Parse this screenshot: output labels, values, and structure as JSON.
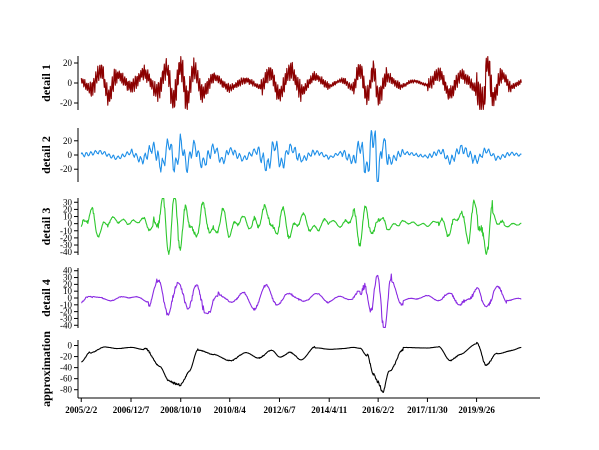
{
  "chart_data": {
    "type": "line",
    "x_tick_labels": [
      "2005/2/2",
      "2006/12/7",
      "2008/10/10",
      "2010/8/4",
      "2012/6/7",
      "2014/4/11",
      "2016/2/2",
      "2017/11/30",
      "2019/9/26"
    ],
    "x_ticks": [
      "2005-02-02",
      "2006-12-07",
      "2008-10-10",
      "2010-08-04",
      "2012-06-07",
      "2014-04-11",
      "2016-02-02",
      "2017-11-30",
      "2019-09-26"
    ],
    "x_range": [
      "2004-12-20",
      "2022-01-31"
    ],
    "data_range": [
      "2005-02-02",
      "2021-05-28"
    ],
    "panels": [
      {
        "ylabel": "detail 1",
        "color": "#8b0000",
        "ylim": [
          -27,
          27
        ],
        "yticks": [
          -20,
          0,
          20
        ],
        "points": [
          [
            "2005-02-02",
            2
          ],
          [
            "2005-06-01",
            -6
          ],
          [
            "2005-11-01",
            12
          ],
          [
            "2006-02-01",
            -14
          ],
          [
            "2006-06-01",
            8
          ],
          [
            "2006-12-01",
            -3
          ],
          [
            "2007-06-01",
            10
          ],
          [
            "2007-12-01",
            -9
          ],
          [
            "2008-04-01",
            16
          ],
          [
            "2008-07-01",
            -17
          ],
          [
            "2008-10-10",
            18
          ],
          [
            "2009-01-01",
            -16
          ],
          [
            "2009-04-01",
            14
          ],
          [
            "2009-08-01",
            -10
          ],
          [
            "2010-01-01",
            6
          ],
          [
            "2010-08-04",
            -5
          ],
          [
            "2011-03-01",
            3
          ],
          [
            "2011-10-01",
            -4
          ],
          [
            "2012-02-01",
            11
          ],
          [
            "2012-06-07",
            -12
          ],
          [
            "2012-11-01",
            13
          ],
          [
            "2013-04-01",
            -8
          ],
          [
            "2013-10-01",
            6
          ],
          [
            "2014-04-11",
            -3
          ],
          [
            "2014-10-01",
            3
          ],
          [
            "2015-03-01",
            -5
          ],
          [
            "2015-06-01",
            14
          ],
          [
            "2015-09-01",
            -15
          ],
          [
            "2015-12-01",
            13
          ],
          [
            "2016-02-02",
            -14
          ],
          [
            "2016-06-01",
            6
          ],
          [
            "2016-12-01",
            -3
          ],
          [
            "2017-06-01",
            2
          ],
          [
            "2017-11-30",
            -2
          ],
          [
            "2018-05-01",
            9
          ],
          [
            "2018-10-01",
            -10
          ],
          [
            "2019-03-01",
            8
          ],
          [
            "2019-09-26",
            -6
          ],
          [
            "2020-01-01",
            -23
          ],
          [
            "2020-02-15",
            24
          ],
          [
            "2020-05-01",
            -14
          ],
          [
            "2020-09-01",
            8
          ],
          [
            "2021-01-01",
            -4
          ],
          [
            "2021-05-28",
            1
          ]
        ]
      },
      {
        "ylabel": "detail 2",
        "color": "#1e8fe8",
        "ylim": [
          -38,
          38
        ],
        "yticks": [
          -20,
          0,
          20
        ],
        "points": [
          [
            "2005-02-02",
            0
          ],
          [
            "2005-10-01",
            4
          ],
          [
            "2006-06-01",
            -4
          ],
          [
            "2006-12-07",
            3
          ],
          [
            "2007-05-01",
            -7
          ],
          [
            "2007-10-01",
            10
          ],
          [
            "2008-02-01",
            -15
          ],
          [
            "2008-05-01",
            16
          ],
          [
            "2008-08-01",
            -18
          ],
          [
            "2008-10-10",
            17
          ],
          [
            "2009-01-01",
            -15
          ],
          [
            "2009-04-01",
            13
          ],
          [
            "2009-08-01",
            -12
          ],
          [
            "2010-01-01",
            9
          ],
          [
            "2010-05-01",
            -8
          ],
          [
            "2010-08-04",
            7
          ],
          [
            "2011-02-01",
            -5
          ],
          [
            "2011-08-01",
            6
          ],
          [
            "2012-01-01",
            -15
          ],
          [
            "2012-04-01",
            15
          ],
          [
            "2012-07-01",
            -13
          ],
          [
            "2012-11-01",
            10
          ],
          [
            "2013-04-01",
            -6
          ],
          [
            "2013-10-01",
            4
          ],
          [
            "2014-04-11",
            -3
          ],
          [
            "2014-10-01",
            3
          ],
          [
            "2015-03-01",
            -8
          ],
          [
            "2015-06-01",
            14
          ],
          [
            "2015-09-01",
            -20
          ],
          [
            "2015-12-01",
            30
          ],
          [
            "2016-02-02",
            -32
          ],
          [
            "2016-04-01",
            20
          ],
          [
            "2016-07-01",
            -8
          ],
          [
            "2017-01-01",
            3
          ],
          [
            "2017-11-30",
            -2
          ],
          [
            "2018-06-01",
            5
          ],
          [
            "2018-10-01",
            -8
          ],
          [
            "2019-03-01",
            9
          ],
          [
            "2019-09-26",
            -7
          ],
          [
            "2020-02-01",
            6
          ],
          [
            "2020-07-01",
            -4
          ],
          [
            "2021-01-01",
            2
          ],
          [
            "2021-05-28",
            0
          ]
        ]
      },
      {
        "ylabel": "detail 3",
        "color": "#2ec82e",
        "ylim": [
          -44,
          36
        ],
        "yticks": [
          -40,
          -30,
          -20,
          -10,
          0,
          10,
          20,
          30
        ],
        "points": [
          [
            "2005-02-02",
            -8
          ],
          [
            "2005-06-01",
            16
          ],
          [
            "2005-10-01",
            -12
          ],
          [
            "2006-03-01",
            6
          ],
          [
            "2006-12-07",
            2
          ],
          [
            "2007-06-01",
            5
          ],
          [
            "2007-10-01",
            -10
          ],
          [
            "2008-02-01",
            26
          ],
          [
            "2008-05-01",
            -28
          ],
          [
            "2008-08-01",
            30
          ],
          [
            "2008-10-10",
            -30
          ],
          [
            "2009-01-01",
            24
          ],
          [
            "2009-04-01",
            -22
          ],
          [
            "2009-08-01",
            18
          ],
          [
            "2010-01-01",
            -16
          ],
          [
            "2010-05-01",
            14
          ],
          [
            "2010-08-04",
            -12
          ],
          [
            "2011-01-01",
            8
          ],
          [
            "2011-06-01",
            -4
          ],
          [
            "2012-01-01",
            18
          ],
          [
            "2012-04-01",
            -20
          ],
          [
            "2012-07-01",
            16
          ],
          [
            "2012-11-01",
            -14
          ],
          [
            "2013-04-01",
            10
          ],
          [
            "2013-09-01",
            -8
          ],
          [
            "2014-04-11",
            4
          ],
          [
            "2014-10-01",
            -3
          ],
          [
            "2015-03-01",
            10
          ],
          [
            "2015-06-01",
            -20
          ],
          [
            "2015-09-01",
            20
          ],
          [
            "2015-12-01",
            -22
          ],
          [
            "2016-02-02",
            14
          ],
          [
            "2016-06-01",
            -6
          ],
          [
            "2017-01-01",
            2
          ],
          [
            "2017-11-30",
            -2
          ],
          [
            "2018-05-01",
            4
          ],
          [
            "2018-10-01",
            -12
          ],
          [
            "2019-02-01",
            16
          ],
          [
            "2019-06-01",
            -14
          ],
          [
            "2019-09-26",
            26
          ],
          [
            "2020-01-01",
            -38
          ],
          [
            "2020-05-01",
            10
          ],
          [
            "2020-10-01",
            -3
          ],
          [
            "2021-05-28",
            0
          ]
        ]
      },
      {
        "ylabel": "detail 4",
        "color": "#8a2be2",
        "ylim": [
          -44,
          44
        ],
        "yticks": [
          -40,
          -30,
          -20,
          -10,
          0,
          10,
          20,
          30,
          40
        ],
        "points": [
          [
            "2005-02-02",
            -8
          ],
          [
            "2005-07-01",
            4
          ],
          [
            "2006-01-01",
            -3
          ],
          [
            "2006-12-07",
            2
          ],
          [
            "2007-08-01",
            -4
          ],
          [
            "2008-01-01",
            20
          ],
          [
            "2008-05-01",
            -20
          ],
          [
            "2008-10-10",
            24
          ],
          [
            "2009-02-01",
            -18
          ],
          [
            "2009-06-01",
            20
          ],
          [
            "2009-11-01",
            -32
          ],
          [
            "2010-03-01",
            12
          ],
          [
            "2010-08-04",
            -10
          ],
          [
            "2011-01-01",
            9
          ],
          [
            "2011-06-01",
            -12
          ],
          [
            "2012-01-01",
            14
          ],
          [
            "2012-06-07",
            -10
          ],
          [
            "2012-11-01",
            10
          ],
          [
            "2013-04-01",
            -8
          ],
          [
            "2013-09-01",
            6
          ],
          [
            "2014-04-11",
            -4
          ],
          [
            "2014-10-01",
            2
          ],
          [
            "2015-03-01",
            -3
          ],
          [
            "2015-06-01",
            10
          ],
          [
            "2015-08-01",
            34
          ],
          [
            "2015-11-01",
            -32
          ],
          [
            "2016-02-02",
            36
          ],
          [
            "2016-05-01",
            -38
          ],
          [
            "2016-08-01",
            18
          ],
          [
            "2017-01-01",
            -3
          ],
          [
            "2017-11-30",
            2
          ],
          [
            "2018-06-01",
            -3
          ],
          [
            "2018-11-01",
            8
          ],
          [
            "2019-03-01",
            -14
          ],
          [
            "2019-09-26",
            16
          ],
          [
            "2020-01-01",
            -18
          ],
          [
            "2020-06-01",
            14
          ],
          [
            "2020-11-01",
            -2
          ],
          [
            "2021-05-28",
            -2
          ]
        ]
      },
      {
        "ylabel": "approximation",
        "color": "#000000",
        "ylim": [
          -95,
          10
        ],
        "yticks": [
          -80,
          -60,
          -40,
          -20,
          0
        ],
        "points": [
          [
            "2005-02-02",
            -30
          ],
          [
            "2005-06-01",
            -15
          ],
          [
            "2006-01-01",
            -3
          ],
          [
            "2006-06-01",
            -5
          ],
          [
            "2006-12-07",
            -3
          ],
          [
            "2007-06-01",
            -8
          ],
          [
            "2008-01-01",
            -40
          ],
          [
            "2008-05-01",
            -60
          ],
          [
            "2008-10-10",
            -64
          ],
          [
            "2009-02-01",
            -45
          ],
          [
            "2009-06-01",
            -10
          ],
          [
            "2010-01-01",
            -18
          ],
          [
            "2010-08-04",
            -25
          ],
          [
            "2011-03-01",
            -12
          ],
          [
            "2011-09-01",
            -25
          ],
          [
            "2012-03-01",
            -10
          ],
          [
            "2012-06-07",
            -20
          ],
          [
            "2012-11-01",
            -10
          ],
          [
            "2013-04-01",
            -25
          ],
          [
            "2013-10-01",
            -5
          ],
          [
            "2014-04-11",
            -7
          ],
          [
            "2014-10-01",
            -5
          ],
          [
            "2015-03-01",
            -3
          ],
          [
            "2015-06-01",
            -5
          ],
          [
            "2015-09-01",
            -20
          ],
          [
            "2015-12-01",
            -60
          ],
          [
            "2016-02-02",
            -75
          ],
          [
            "2016-04-01",
            -90
          ],
          [
            "2016-07-01",
            -45
          ],
          [
            "2017-01-01",
            -3
          ],
          [
            "2017-11-30",
            -5
          ],
          [
            "2018-05-01",
            -3
          ],
          [
            "2018-10-01",
            -25
          ],
          [
            "2019-02-01",
            -15
          ],
          [
            "2019-09-26",
            2
          ],
          [
            "2020-02-01",
            -40
          ],
          [
            "2020-07-01",
            -15
          ],
          [
            "2021-01-01",
            -8
          ],
          [
            "2021-05-28",
            -3
          ]
        ]
      }
    ]
  }
}
